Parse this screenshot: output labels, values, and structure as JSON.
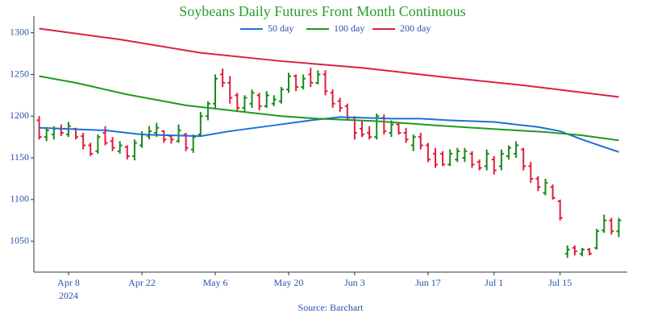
{
  "chart_data": {
    "type": "ohlc",
    "title": "Soybeans Daily Futures Front Month Continuous",
    "source": "Source: Barchart",
    "x": [
      "2024-04-02",
      "2024-04-03",
      "2024-04-04",
      "2024-04-05",
      "2024-04-08",
      "2024-04-09",
      "2024-04-10",
      "2024-04-11",
      "2024-04-12",
      "2024-04-15",
      "2024-04-16",
      "2024-04-17",
      "2024-04-18",
      "2024-04-19",
      "2024-04-22",
      "2024-04-23",
      "2024-04-24",
      "2024-04-25",
      "2024-04-26",
      "2024-04-29",
      "2024-04-30",
      "2024-05-01",
      "2024-05-02",
      "2024-05-03",
      "2024-05-06",
      "2024-05-07",
      "2024-05-08",
      "2024-05-09",
      "2024-05-10",
      "2024-05-13",
      "2024-05-14",
      "2024-05-15",
      "2024-05-16",
      "2024-05-17",
      "2024-05-20",
      "2024-05-21",
      "2024-05-22",
      "2024-05-23",
      "2024-05-24",
      "2024-05-28",
      "2024-05-29",
      "2024-05-30",
      "2024-05-31",
      "2024-06-03",
      "2024-06-04",
      "2024-06-05",
      "2024-06-06",
      "2024-06-07",
      "2024-06-10",
      "2024-06-11",
      "2024-06-12",
      "2024-06-13",
      "2024-06-14",
      "2024-06-17",
      "2024-06-18",
      "2024-06-20",
      "2024-06-21",
      "2024-06-24",
      "2024-06-25",
      "2024-06-26",
      "2024-06-27",
      "2024-06-28",
      "2024-07-01",
      "2024-07-02",
      "2024-07-03",
      "2024-07-05",
      "2024-07-08",
      "2024-07-09",
      "2024-07-10",
      "2024-07-11",
      "2024-07-12",
      "2024-07-15",
      "2024-07-16",
      "2024-07-17",
      "2024-07-18",
      "2024-07-19",
      "2024-07-22",
      "2024-07-23",
      "2024-07-24",
      "2024-07-25"
    ],
    "open": [
      1195,
      1175,
      1178,
      1185,
      1178,
      1185,
      1176,
      1165,
      1158,
      1180,
      1170,
      1158,
      1163,
      1152,
      1165,
      1176,
      1180,
      1182,
      1176,
      1170,
      1178,
      1160,
      1178,
      1200,
      1215,
      1250,
      1240,
      1225,
      1210,
      1215,
      1225,
      1212,
      1215,
      1218,
      1232,
      1248,
      1235,
      1250,
      1240,
      1250,
      1228,
      1218,
      1212,
      1198,
      1185,
      1180,
      1175,
      1198,
      1180,
      1190,
      1180,
      1165,
      1175,
      1165,
      1155,
      1155,
      1142,
      1148,
      1150,
      1155,
      1145,
      1140,
      1148,
      1140,
      1152,
      1155,
      1160,
      1140,
      1125,
      1108,
      1115,
      1098,
      1035,
      1042,
      1035,
      1040,
      1042,
      1063,
      1075,
      1062
    ],
    "high": [
      1200,
      1187,
      1188,
      1190,
      1193,
      1186,
      1180,
      1168,
      1178,
      1188,
      1175,
      1170,
      1165,
      1172,
      1182,
      1188,
      1192,
      1183,
      1178,
      1190,
      1180,
      1178,
      1205,
      1218,
      1250,
      1257,
      1248,
      1228,
      1225,
      1232,
      1228,
      1230,
      1225,
      1235,
      1252,
      1250,
      1250,
      1258,
      1255,
      1255,
      1232,
      1222,
      1215,
      1200,
      1195,
      1188,
      1203,
      1202,
      1195,
      1192,
      1186,
      1178,
      1180,
      1168,
      1162,
      1158,
      1160,
      1162,
      1162,
      1158,
      1148,
      1160,
      1152,
      1160,
      1165,
      1170,
      1162,
      1145,
      1128,
      1125,
      1118,
      1100,
      1045,
      1045,
      1042,
      1042,
      1065,
      1082,
      1078,
      1078
    ],
    "low": [
      1172,
      1170,
      1172,
      1176,
      1175,
      1172,
      1160,
      1152,
      1155,
      1165,
      1158,
      1155,
      1148,
      1147,
      1162,
      1172,
      1175,
      1168,
      1167,
      1168,
      1158,
      1156,
      1175,
      1195,
      1210,
      1235,
      1215,
      1205,
      1205,
      1210,
      1207,
      1210,
      1212,
      1215,
      1228,
      1230,
      1232,
      1235,
      1238,
      1225,
      1210,
      1205,
      1195,
      1172,
      1175,
      1172,
      1172,
      1178,
      1175,
      1178,
      1168,
      1158,
      1160,
      1145,
      1138,
      1140,
      1140,
      1145,
      1145,
      1138,
      1135,
      1135,
      1130,
      1135,
      1148,
      1150,
      1135,
      1120,
      1110,
      1105,
      1100,
      1075,
      1030,
      1033,
      1032,
      1033,
      1040,
      1060,
      1058,
      1055
    ],
    "close": [
      1175,
      1183,
      1185,
      1180,
      1188,
      1175,
      1165,
      1155,
      1175,
      1168,
      1162,
      1165,
      1152,
      1168,
      1178,
      1182,
      1186,
      1172,
      1172,
      1183,
      1162,
      1175,
      1200,
      1215,
      1245,
      1240,
      1222,
      1210,
      1222,
      1228,
      1212,
      1225,
      1220,
      1232,
      1248,
      1235,
      1245,
      1240,
      1250,
      1230,
      1215,
      1210,
      1198,
      1180,
      1178,
      1175,
      1200,
      1182,
      1190,
      1180,
      1172,
      1175,
      1165,
      1148,
      1142,
      1142,
      1155,
      1158,
      1158,
      1142,
      1138,
      1155,
      1135,
      1155,
      1162,
      1165,
      1140,
      1125,
      1115,
      1120,
      1102,
      1078,
      1040,
      1038,
      1040,
      1035,
      1062,
      1075,
      1062,
      1075
    ],
    "up_color": "#1a8a1a",
    "down_color": "#e01e3c",
    "series": [
      {
        "name": "50 day",
        "color": "#1f6fd6",
        "x": [
          "2024-04-02",
          "2024-04-15",
          "2024-04-22",
          "2024-05-02",
          "2024-05-08",
          "2024-05-16",
          "2024-05-23",
          "2024-05-30",
          "2024-06-10",
          "2024-06-14",
          "2024-06-21",
          "2024-07-01",
          "2024-07-10",
          "2024-07-15",
          "2024-07-18",
          "2024-07-22",
          "2024-07-25"
        ],
        "values": [
          1186,
          1183,
          1178,
          1176,
          1182,
          1189,
          1195,
          1199,
          1197,
          1197,
          1195,
          1193,
          1187,
          1182,
          1172,
          1166,
          1157
        ]
      },
      {
        "name": "100 day",
        "color": "#1e9a1e",
        "x": [
          "2024-04-02",
          "2024-04-09",
          "2024-04-18",
          "2024-04-30",
          "2024-05-10",
          "2024-05-17",
          "2024-05-24",
          "2024-06-06",
          "2024-06-18",
          "2024-07-02",
          "2024-07-11",
          "2024-07-18",
          "2024-07-25"
        ],
        "values": [
          1248,
          1240,
          1226,
          1213,
          1205,
          1200,
          1197,
          1194,
          1189,
          1184,
          1181,
          1177,
          1171
        ]
      },
      {
        "name": "200 day",
        "color": "#dc2040",
        "x": [
          "2024-04-02",
          "2024-04-17",
          "2024-05-02",
          "2024-05-17",
          "2024-06-04",
          "2024-06-20",
          "2024-07-08",
          "2024-07-25"
        ],
        "values": [
          1305,
          1292,
          1276,
          1266,
          1258,
          1247,
          1237,
          1223
        ]
      }
    ],
    "ylim": [
      1013,
      1320
    ],
    "yticks": [
      1050,
      1100,
      1150,
      1200,
      1250,
      1300
    ],
    "xticks": [
      {
        "value": "2024-04-08",
        "label": "Apr 8",
        "sublabel": "2024"
      },
      {
        "value": "2024-04-22",
        "label": "Apr 22"
      },
      {
        "value": "2024-05-06",
        "label": "May 6"
      },
      {
        "value": "2024-05-20",
        "label": "May 20"
      },
      {
        "value": "2024-06-03",
        "label": "Jun 3"
      },
      {
        "value": "2024-06-17",
        "label": "Jun 17"
      },
      {
        "value": "2024-07-01",
        "label": "Jul 1"
      },
      {
        "value": "2024-07-15",
        "label": "Jul 15"
      }
    ],
    "legend": "top"
  }
}
